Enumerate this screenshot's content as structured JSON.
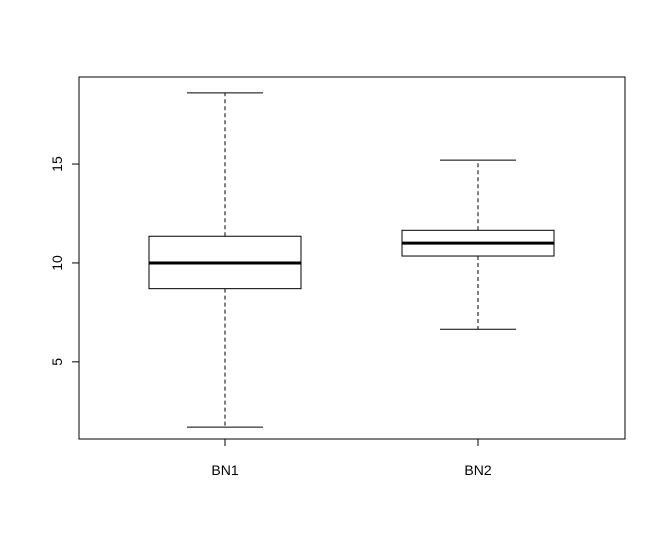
{
  "chart_data": {
    "type": "boxplot",
    "categories": [
      "BN1",
      "BN2"
    ],
    "boxes": [
      {
        "label": "BN1",
        "whisker_low": 1.7,
        "q1": 8.7,
        "median": 10.0,
        "q3": 11.35,
        "whisker_high": 18.6
      },
      {
        "label": "BN2",
        "whisker_low": 6.65,
        "q1": 10.35,
        "median": 11.0,
        "q3": 11.65,
        "whisker_high": 15.2
      }
    ],
    "yticks": [
      5,
      10,
      15
    ],
    "ylim": [
      1.1,
      19.4
    ],
    "title": "",
    "xlabel": "",
    "ylabel": "",
    "grid": false,
    "colors": {
      "stroke": "#000000",
      "background": "#ffffff"
    }
  }
}
